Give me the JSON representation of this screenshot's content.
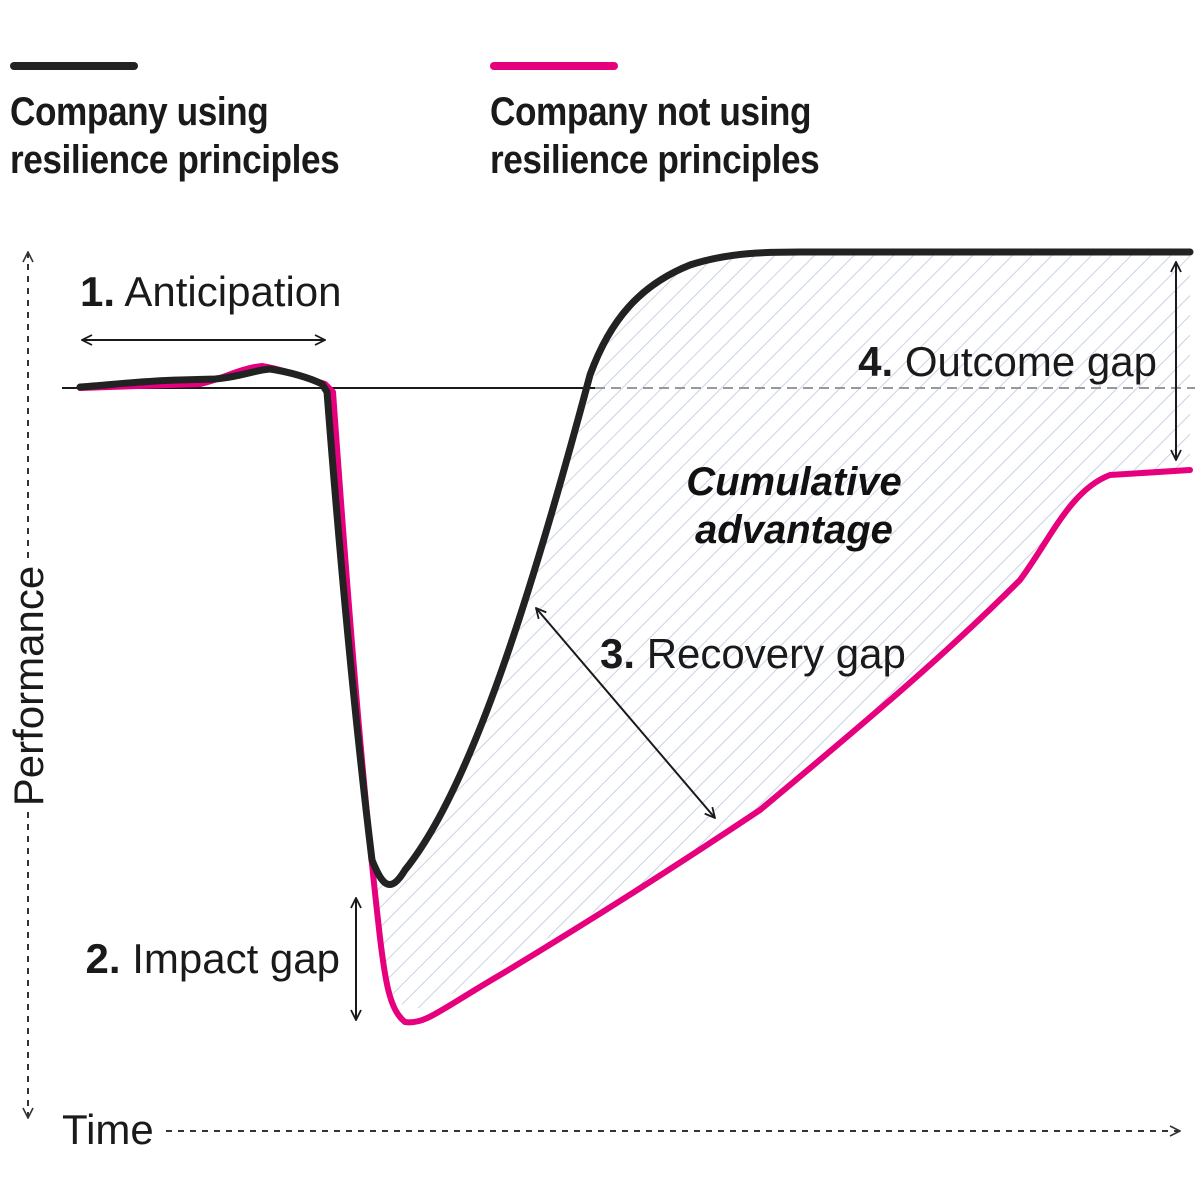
{
  "legend": [
    {
      "label_line1": "Company using",
      "label_line2": "resilience principles",
      "color": "#222222"
    },
    {
      "label_line1": "Company not using",
      "label_line2": "resilience principles",
      "color": "#e6007e"
    }
  ],
  "axes": {
    "x_label": "Time",
    "y_label": "Performance"
  },
  "annotations": {
    "anticipation": {
      "number": "1.",
      "text": "Anticipation"
    },
    "impact_gap": {
      "number": "2.",
      "text": "Impact gap"
    },
    "recovery_gap": {
      "number": "3.",
      "text": "Recovery gap"
    },
    "outcome_gap": {
      "number": "4.",
      "text": "Outcome gap"
    },
    "cumulative_line1": "Cumulative",
    "cumulative_line2": "advantage"
  },
  "colors": {
    "resilient": "#222222",
    "non_resilient": "#e6007e",
    "hatch": "#c9d3e4",
    "axis": "#333333"
  }
}
